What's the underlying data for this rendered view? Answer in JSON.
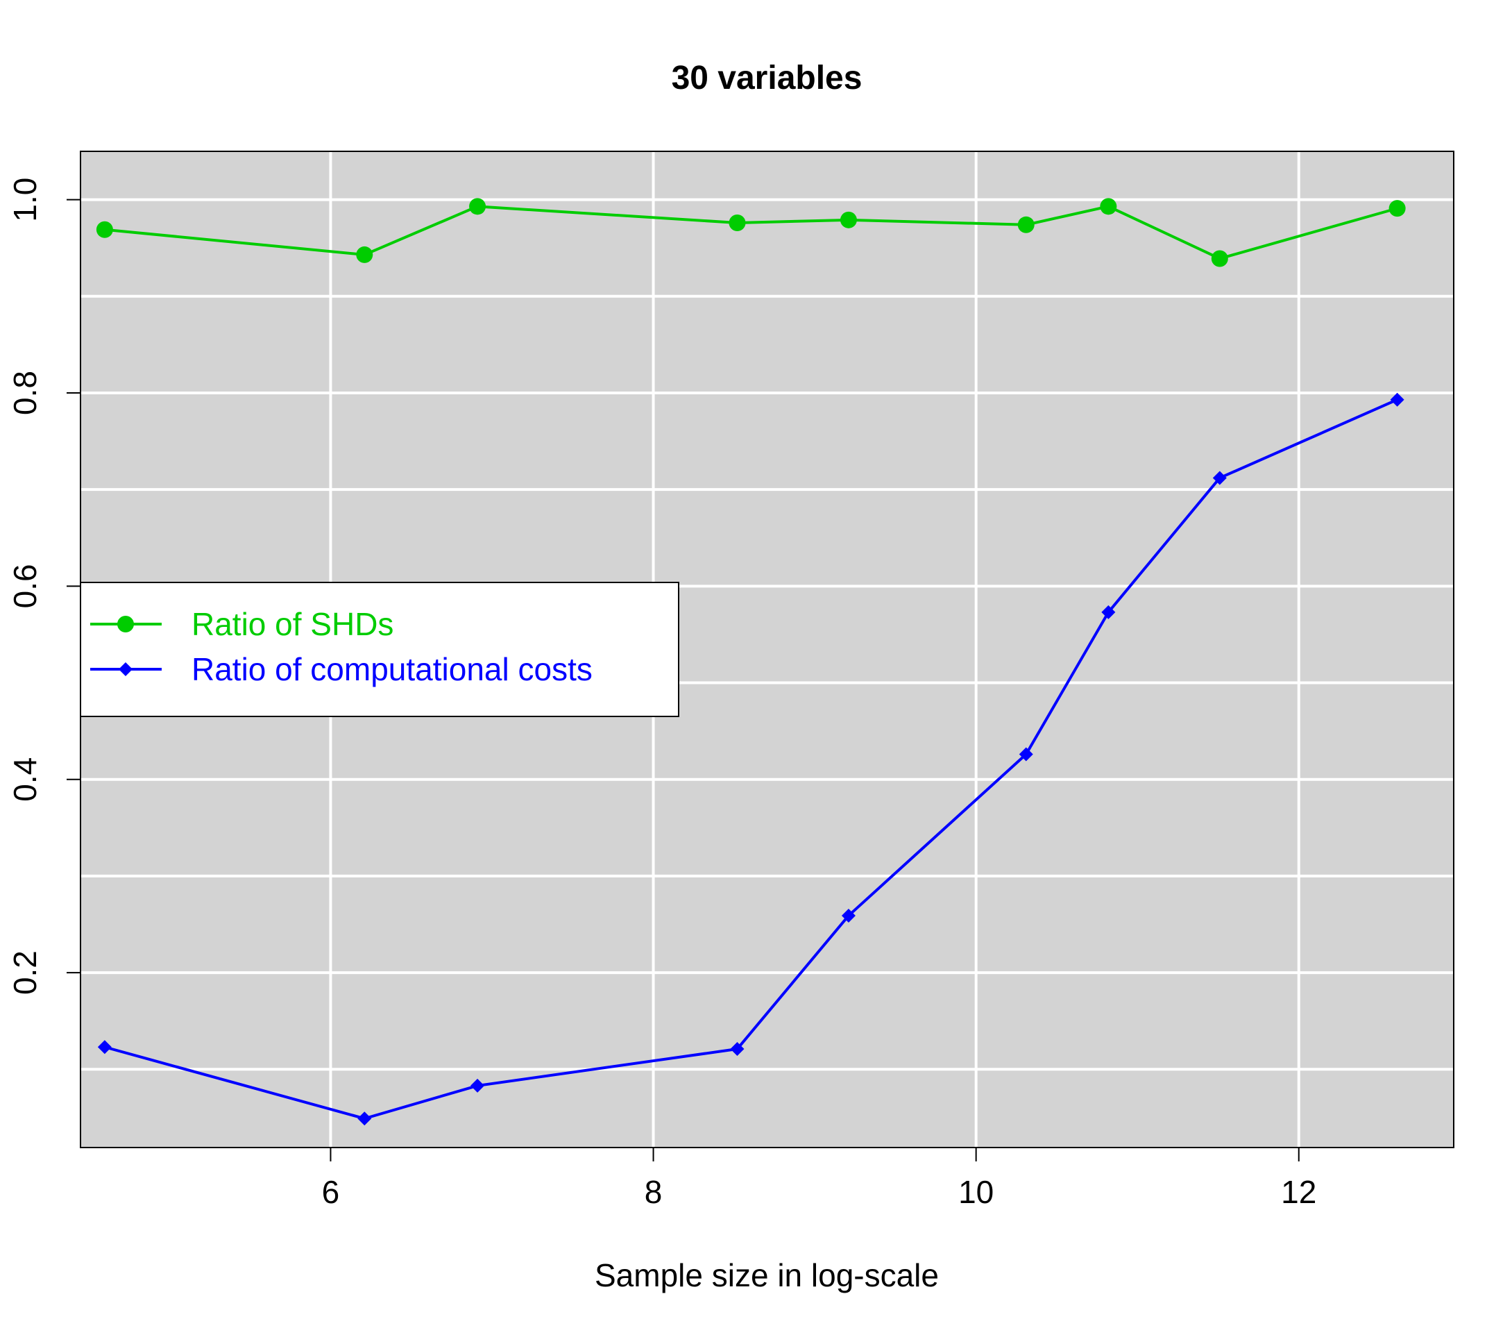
{
  "chart_data": {
    "type": "line",
    "title": "30 variables",
    "xlabel": "Sample size in log-scale",
    "ylabel": "",
    "xlim": [
      4.45,
      12.96
    ],
    "ylim": [
      0.019,
      1.05
    ],
    "x_ticks": [
      6,
      8,
      10,
      12
    ],
    "x_tick_labels": [
      "6",
      "8",
      "10",
      "12"
    ],
    "y_ticks": [
      0.2,
      0.4,
      0.6,
      0.8,
      1.0
    ],
    "y_tick_labels": [
      "0.2",
      "0.4",
      "0.6",
      "0.8",
      "1.0"
    ],
    "x_grid": [
      6,
      8,
      10,
      12
    ],
    "y_grid": [
      0.1,
      0.2,
      0.3,
      0.4,
      0.5,
      0.6,
      0.7,
      0.8,
      0.9,
      1.0
    ],
    "grid": true,
    "background_color": "#d3d3d3",
    "legend_position": "middle-left",
    "x": [
      4.6,
      6.21,
      6.91,
      8.52,
      9.21,
      10.31,
      10.82,
      11.51,
      12.61
    ],
    "series": [
      {
        "name": "Ratio of SHDs",
        "color": "#00cc00",
        "marker": "circle",
        "values": [
          0.969,
          0.943,
          0.993,
          0.976,
          0.979,
          0.974,
          0.993,
          0.939,
          0.991
        ]
      },
      {
        "name": "Ratio of computational costs",
        "color": "#0000ff",
        "marker": "diamond",
        "values": [
          0.123,
          0.049,
          0.083,
          0.121,
          0.259,
          0.426,
          0.573,
          0.712,
          0.793
        ]
      }
    ]
  }
}
